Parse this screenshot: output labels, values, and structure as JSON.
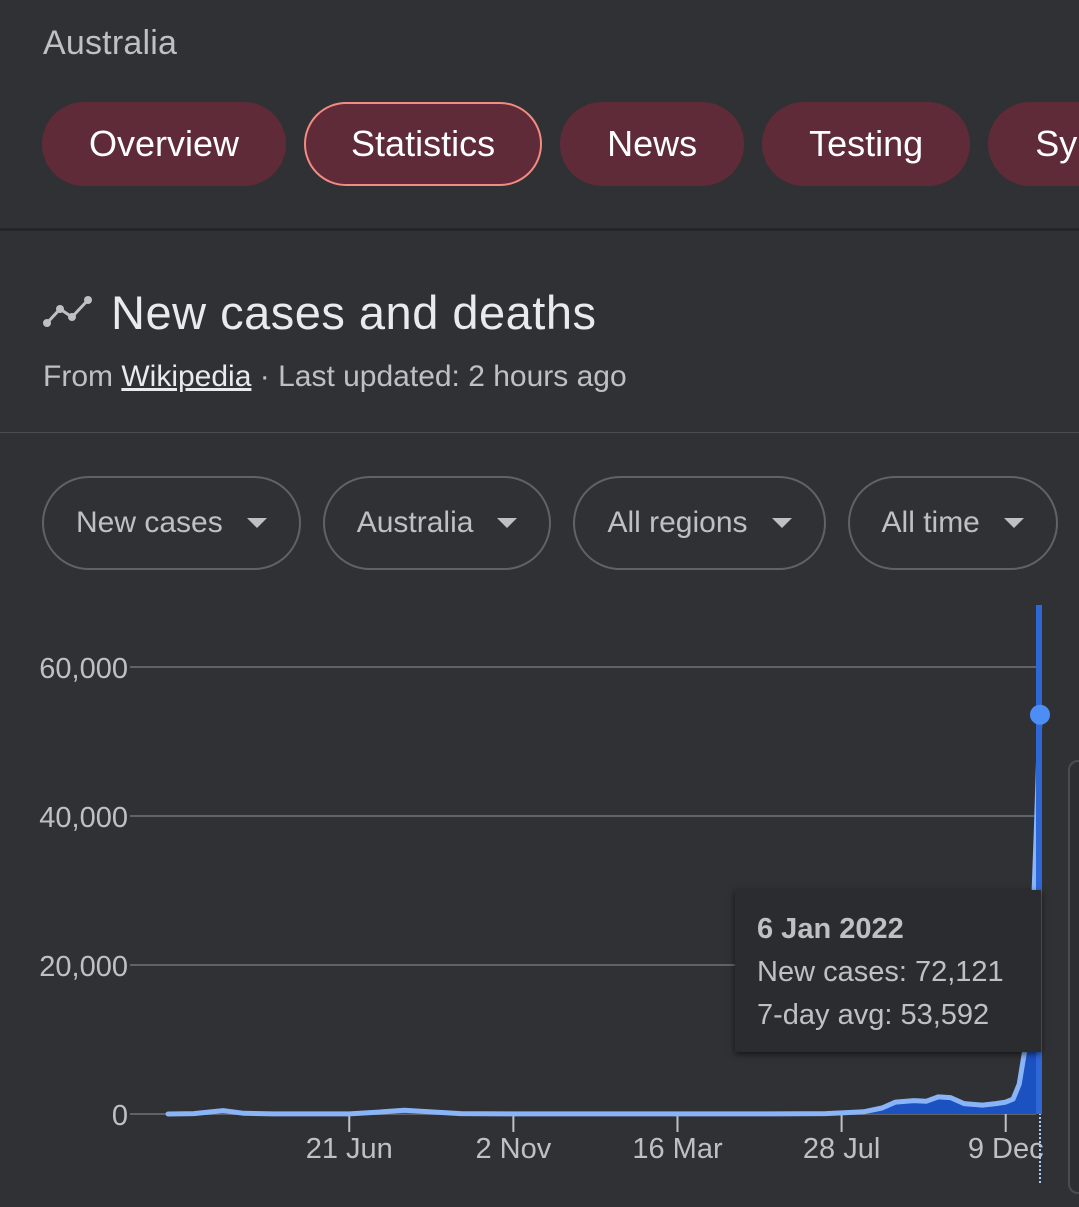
{
  "header": {
    "country": "Australia"
  },
  "tabs": [
    {
      "label": "Overview",
      "active": false
    },
    {
      "label": "Statistics",
      "active": true
    },
    {
      "label": "News",
      "active": false
    },
    {
      "label": "Testing",
      "active": false
    },
    {
      "label": "Sy",
      "active": false
    }
  ],
  "section": {
    "title": "New cases and deaths",
    "source_prefix": "From",
    "source_link": "Wikipedia",
    "updated": "· Last updated: 2 hours ago",
    "icon": "trend-line-icon"
  },
  "filters": [
    {
      "label": "New cases"
    },
    {
      "label": "Australia"
    },
    {
      "label": "All regions"
    },
    {
      "label": "All time"
    }
  ],
  "tooltip": {
    "date": "6 Jan 2022",
    "new_cases": "New cases: 72,121",
    "avg": "7-day avg: 53,592"
  },
  "colors": {
    "tab_bg": "#5f2b38",
    "tab_active_border": "#f28b82",
    "line": "#8ab4f8",
    "fill": "#1a53c8",
    "dot": "#4c8df6"
  },
  "chart_data": {
    "type": "line",
    "title": "",
    "xlabel": "",
    "ylabel": "",
    "ylim": [
      0,
      60000
    ],
    "yticks": [
      "60,000",
      "40,000",
      "20,000",
      "0"
    ],
    "ytick_values": [
      60000,
      40000,
      20000,
      0
    ],
    "x_tick_labels": [
      "21 Jun",
      "2 Nov",
      "16 Mar",
      "28 Jul",
      "9 Dec"
    ],
    "series": [
      {
        "name": "7-day avg",
        "x": [
          "2020-01-25",
          "2020-02-15",
          "2020-03-10",
          "2020-03-27",
          "2020-04-20",
          "2020-05-20",
          "2020-06-21",
          "2020-07-15",
          "2020-08-05",
          "2020-08-25",
          "2020-09-20",
          "2020-11-02",
          "2021-01-01",
          "2021-03-16",
          "2021-06-01",
          "2021-07-15",
          "2021-07-28",
          "2021-08-15",
          "2021-08-30",
          "2021-09-10",
          "2021-09-25",
          "2021-10-05",
          "2021-10-15",
          "2021-10-25",
          "2021-11-05",
          "2021-11-20",
          "2021-12-01",
          "2021-12-09",
          "2021-12-15",
          "2021-12-20",
          "2021-12-25",
          "2021-12-30",
          "2022-01-03",
          "2022-01-06"
        ],
        "values": [
          0,
          50,
          450,
          100,
          20,
          10,
          20,
          250,
          500,
          300,
          50,
          10,
          20,
          10,
          10,
          50,
          150,
          300,
          800,
          1600,
          1800,
          1700,
          2300,
          2200,
          1400,
          1200,
          1400,
          1600,
          2000,
          4000,
          9000,
          20000,
          38000,
          53592
        ]
      }
    ],
    "highlight": {
      "date": "6 Jan 2022",
      "new_cases": 72121,
      "avg": 53592
    }
  }
}
